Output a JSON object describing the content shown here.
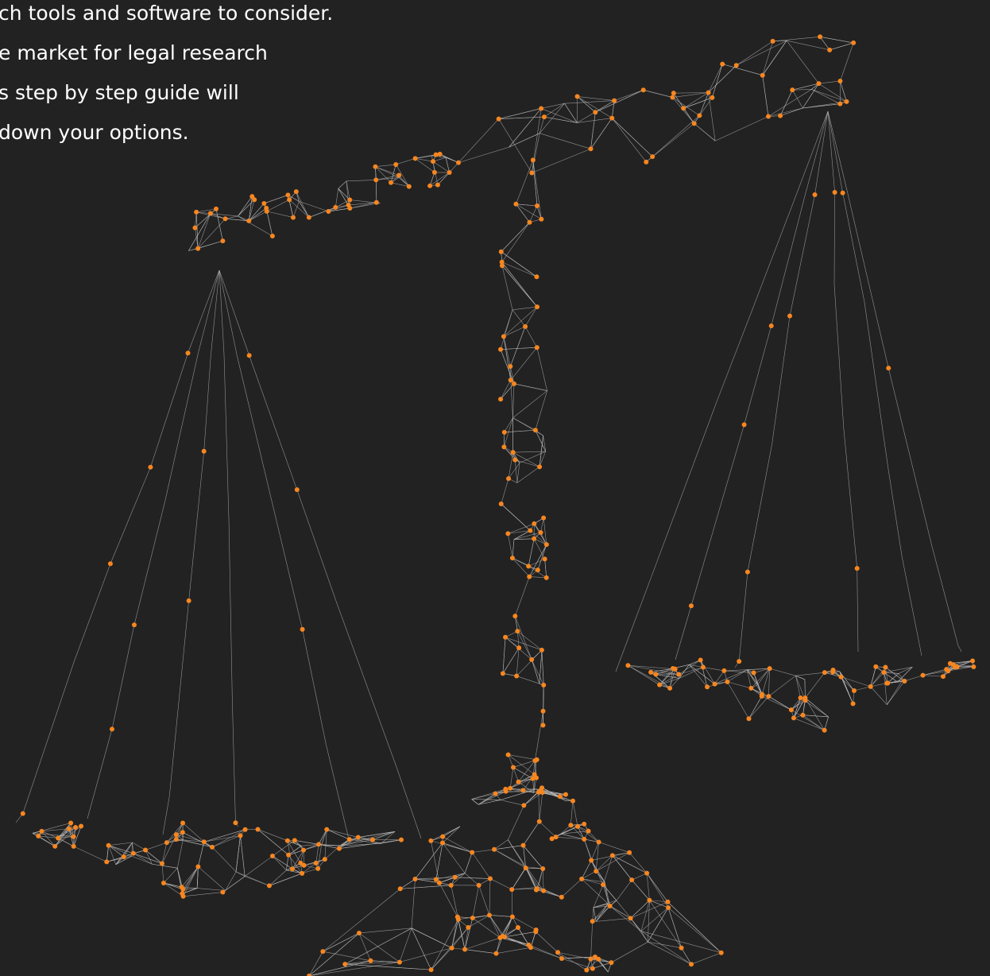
{
  "text_lines": [
    "ch tools and software to consider.",
    "e market for legal research",
    "s step by step guide will",
    "down your options."
  ]
}
